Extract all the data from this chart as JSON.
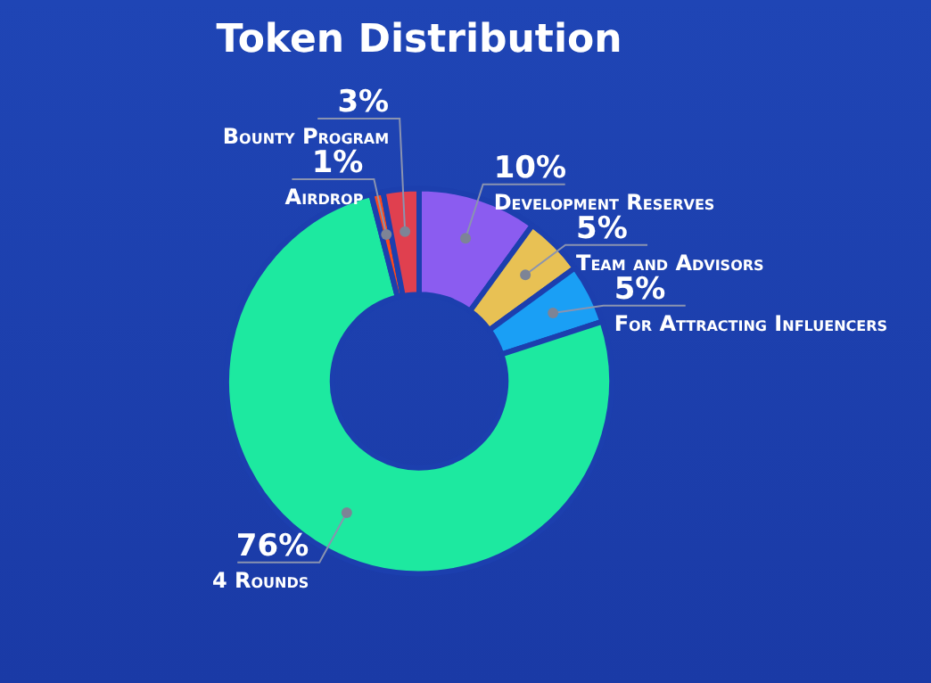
{
  "chart_data": {
    "type": "donut",
    "title": "Token Distribution",
    "categories": [
      "Development Reserves",
      "Team and Advisors",
      "For Attracting Influencers",
      "4 Rounds",
      "Airdrop",
      "Bounty Program"
    ],
    "values": [
      10,
      5,
      5,
      76,
      1,
      3
    ],
    "colors": [
      "#8b5cf0",
      "#e8c154",
      "#1a9ff5",
      "#1de9a0",
      "#ff4a1a",
      "#e0404f"
    ],
    "value_labels": [
      "10%",
      "5%",
      "5%",
      "76%",
      "1%",
      "3%"
    ]
  }
}
